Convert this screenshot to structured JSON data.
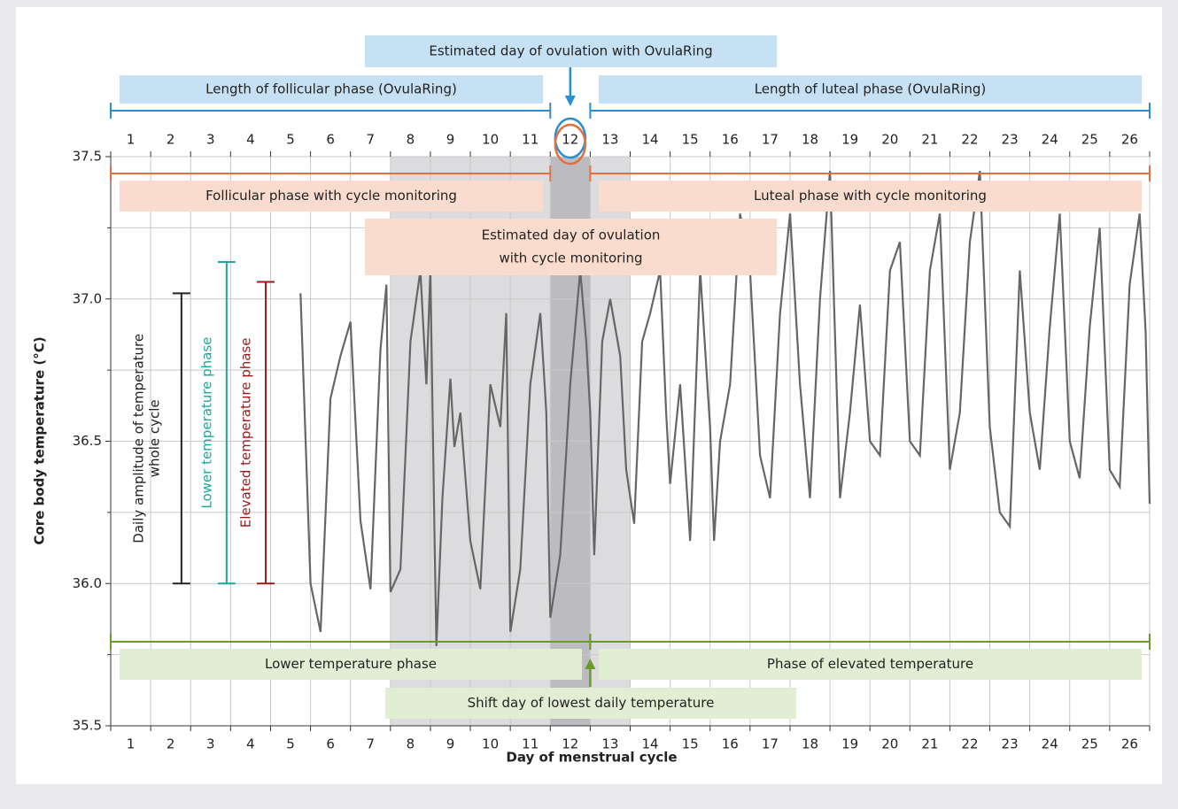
{
  "chart_data": {
    "type": "line",
    "xlabel": "Day of menstrual cycle",
    "ylabel": "Core body temperature (°C)",
    "xlim": [
      0.5,
      26.5
    ],
    "xticks": [
      1,
      2,
      3,
      4,
      5,
      6,
      7,
      8,
      9,
      10,
      11,
      12,
      13,
      14,
      15,
      16,
      17,
      18,
      19,
      20,
      21,
      22,
      23,
      24,
      25,
      26
    ],
    "ylim": [
      35.5,
      37.5
    ],
    "yticks": [
      35.5,
      {
        "value": 36,
        "label": "36.0"
      },
      36.5,
      {
        "value": 37,
        "label": "37.0"
      },
      37.5
    ],
    "minor_yticks": [
      35.75,
      36.25,
      36.75,
      37.25
    ],
    "grid": true,
    "shaded": [
      {
        "from": 7.5,
        "to": 13.5,
        "color": "#dcdcdf"
      },
      {
        "from": 11.5,
        "to": 12.5,
        "color": "#bcbcc0"
      }
    ],
    "series": [
      {
        "color": "#666666",
        "x": [
          5.25,
          5.5,
          5.75,
          6.0,
          6.25,
          6.5,
          6.75,
          7.0,
          7.25,
          7.4,
          7.5,
          7.75,
          8.0,
          8.25,
          8.4,
          8.5,
          8.6,
          8.65,
          8.8,
          9.0,
          9.1,
          9.25,
          9.5,
          9.75,
          10.0,
          10.25,
          10.4,
          10.5,
          10.75,
          11.0,
          11.25,
          11.4,
          11.5,
          11.75,
          12.0,
          12.25,
          12.4,
          12.5,
          12.6,
          12.8,
          13.0,
          13.25,
          13.4,
          13.6,
          13.8,
          14.0,
          14.25,
          14.4,
          14.5,
          14.75,
          15.0,
          15.25,
          15.5,
          15.6,
          15.75,
          16.0,
          16.25,
          16.5,
          16.75,
          17.0,
          17.25,
          17.5,
          17.75,
          18.0,
          18.25,
          18.5,
          18.75,
          19.0,
          19.25,
          19.5,
          19.75,
          20.0,
          20.25,
          20.5,
          20.75,
          21.0,
          21.25,
          21.5,
          21.75,
          22.0,
          22.25,
          22.5,
          22.75,
          23.0,
          23.25,
          23.5,
          23.75,
          24.0,
          24.25,
          24.5,
          24.75,
          25.0,
          25.25,
          25.5,
          25.75,
          26.0,
          26.25,
          26.4,
          26.5
        ],
        "values": [
          37.02,
          36.0,
          35.83,
          36.65,
          36.8,
          36.92,
          36.22,
          35.98,
          36.82,
          37.05,
          35.97,
          36.05,
          36.85,
          37.1,
          36.7,
          37.1,
          36.2,
          35.78,
          36.3,
          36.72,
          36.48,
          36.6,
          36.15,
          35.98,
          36.7,
          36.55,
          36.95,
          35.83,
          36.05,
          36.7,
          36.95,
          36.6,
          35.88,
          36.1,
          36.7,
          37.1,
          36.85,
          36.6,
          36.1,
          36.85,
          37.0,
          36.8,
          36.4,
          36.21,
          36.85,
          36.95,
          37.1,
          36.6,
          36.35,
          36.7,
          36.15,
          37.1,
          36.55,
          36.15,
          36.5,
          36.7,
          37.3,
          37.1,
          36.45,
          36.3,
          36.95,
          37.3,
          36.7,
          36.3,
          37.0,
          37.45,
          36.3,
          36.6,
          36.98,
          36.5,
          36.45,
          37.1,
          37.2,
          36.5,
          36.45,
          37.1,
          37.3,
          36.4,
          36.6,
          37.2,
          37.45,
          36.55,
          36.25,
          36.2,
          37.1,
          36.6,
          36.4,
          36.9,
          37.3,
          36.5,
          36.37,
          36.9,
          37.25,
          36.4,
          36.34,
          37.05,
          37.3,
          36.88,
          36.28
        ]
      }
    ],
    "ovularing": {
      "color": "#2a8fd0",
      "box_color": "#c6e1f4",
      "segments": [
        [
          0.5,
          11.5
        ],
        [
          12.5,
          26.5
        ]
      ],
      "labels": [
        "Length of follicular phase (OvulaRing)",
        "Length of luteal phase (OvulaRing)",
        "Estimated day of ovulation with OvulaRing"
      ]
    },
    "cycle_monitoring": {
      "color": "#e07040",
      "box_color": "#f9dccd",
      "segments": [
        [
          0.5,
          11.5
        ],
        [
          12.5,
          26.5
        ]
      ],
      "labels": [
        "Follicular phase with cycle monitoring",
        "Luteal phase with cycle monitoring",
        "Estimated day of ovulation",
        "with cycle monitoring"
      ]
    },
    "temperature_shift": {
      "color": "#6a9a2a",
      "box_color": "#e2eed3",
      "segments": [
        [
          0.5,
          12.5
        ],
        [
          12.5,
          26.5
        ]
      ],
      "labels": [
        "Lower temperature phase",
        "Phase of elevated temperature",
        "Shift day of lowest daily temperature"
      ]
    },
    "range_bars": [
      {
        "x": 2.27,
        "from": 36.0,
        "to": 37.02,
        "color": "#222222",
        "labels": [
          "Daily amplitude of temperature",
          "whole cycle"
        ]
      },
      {
        "x": 3.4,
        "from": 36.0,
        "to": 37.13,
        "color": "#1aa89a",
        "labels": [
          "Lower temperature phase"
        ]
      },
      {
        "x": 4.38,
        "from": 36.0,
        "to": 37.06,
        "color": "#9a1a1a",
        "labels": [
          "Elevated temperature phase"
        ]
      }
    ]
  }
}
